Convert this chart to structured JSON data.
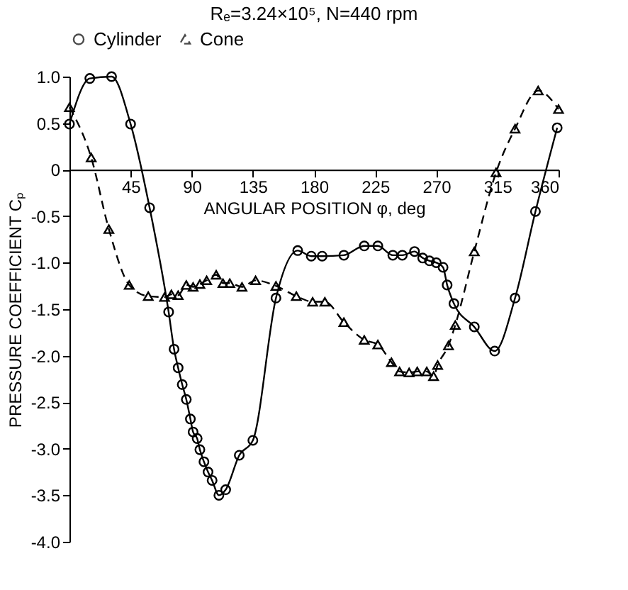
{
  "chart_data": {
    "type": "line",
    "title": "Rₑ=3.24×10⁵, N=440 rpm",
    "xlabel": "ANGULAR POSITION φ, deg",
    "ylabel": "PRESSURE COEFFICIENT Cₚ",
    "xlim": [
      0,
      360
    ],
    "ylim": [
      -4.0,
      1.0
    ],
    "xticks": [
      45,
      90,
      135,
      180,
      225,
      270,
      315,
      360
    ],
    "yticks": [
      {
        "value": 1.0,
        "label": "1.0"
      },
      {
        "value": 0.5,
        "label": "0.5"
      },
      0,
      {
        "value": -0.5,
        "label": "-0.5"
      },
      {
        "value": -1.0,
        "label": "-1.0"
      },
      {
        "value": -1.5,
        "label": "-1.5"
      },
      {
        "value": -2.0,
        "label": "-2.0"
      },
      {
        "value": -2.5,
        "label": "-2.5"
      },
      {
        "value": -3.0,
        "label": "-3.0"
      },
      {
        "value": -3.5,
        "label": "-3.5"
      },
      {
        "value": -4.0,
        "label": "-4.0"
      }
    ],
    "grid": false,
    "legend": "top",
    "series": [
      {
        "name": "Cylinder",
        "color": "#000000",
        "marker": "circle",
        "line_style": "solid",
        "x": [
          0,
          15,
          31,
          45,
          59,
          73,
          77,
          80,
          83,
          86,
          89,
          91,
          94,
          96,
          99,
          102,
          105,
          110,
          115,
          125,
          135,
          152,
          168,
          178,
          186,
          202,
          217,
          227,
          238,
          245,
          254,
          260,
          265,
          270,
          275,
          278,
          283,
          298,
          313,
          328,
          343,
          359
        ],
        "values": [
          0.49,
          0.98,
          1.0,
          0.49,
          -0.41,
          -1.53,
          -1.93,
          -2.13,
          -2.31,
          -2.47,
          -2.68,
          -2.82,
          -2.89,
          -3.01,
          -3.14,
          -3.25,
          -3.34,
          -3.5,
          -3.44,
          -3.07,
          -2.91,
          -1.38,
          -0.87,
          -0.93,
          -0.93,
          -0.92,
          -0.82,
          -0.82,
          -0.92,
          -0.92,
          -0.88,
          -0.95,
          -0.98,
          -1.0,
          -1.05,
          -1.24,
          -1.44,
          -1.69,
          -1.95,
          -1.38,
          -0.45,
          0.45
        ]
      },
      {
        "name": "Cone",
        "color": "#000000",
        "marker": "triangle",
        "line_style": "dashed",
        "x": [
          0,
          16,
          29,
          44,
          58,
          70,
          75,
          80,
          86,
          91,
          96,
          101,
          108,
          113,
          118,
          127,
          137,
          152,
          167,
          179,
          188,
          202,
          217,
          227,
          237,
          243,
          250,
          256,
          263,
          268,
          271,
          279,
          284,
          298,
          314,
          328,
          345,
          360
        ],
        "values": [
          0.67,
          0.13,
          -0.64,
          -1.24,
          -1.36,
          -1.37,
          -1.34,
          -1.35,
          -1.24,
          -1.26,
          -1.23,
          -1.19,
          -1.13,
          -1.22,
          -1.22,
          -1.26,
          -1.19,
          -1.25,
          -1.36,
          -1.42,
          -1.42,
          -1.64,
          -1.83,
          -1.88,
          -2.07,
          -2.17,
          -2.18,
          -2.17,
          -2.17,
          -2.22,
          -2.1,
          -1.89,
          -1.67,
          -0.88,
          -0.03,
          0.44,
          0.85,
          0.65
        ]
      }
    ]
  }
}
